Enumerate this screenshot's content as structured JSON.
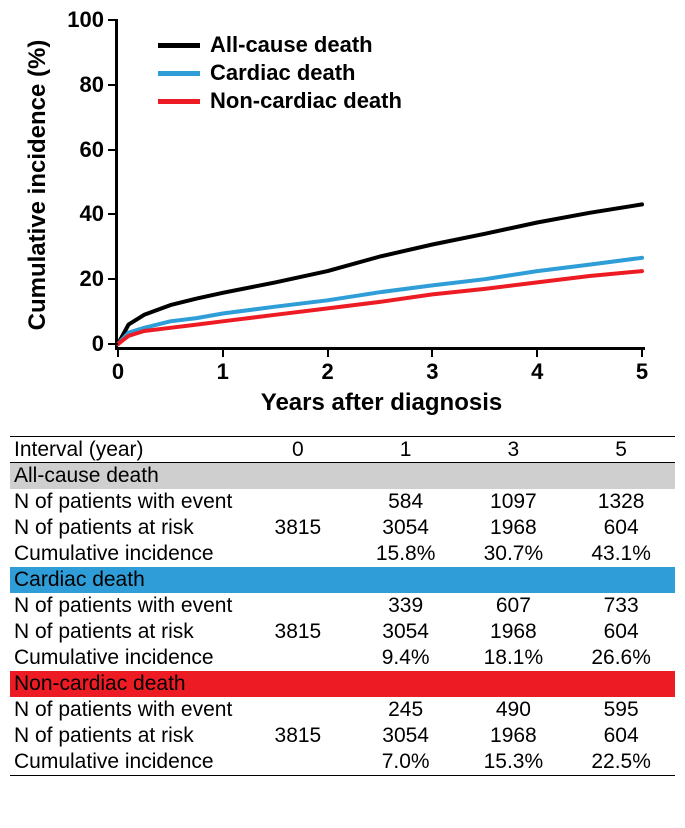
{
  "chart": {
    "type": "line",
    "background_color": "#ffffff",
    "axis_color": "#000000",
    "line_width": 4,
    "xlim": [
      0,
      5
    ],
    "ylim": [
      0,
      100
    ],
    "xticks": [
      0,
      1,
      2,
      3,
      4,
      5
    ],
    "yticks": [
      0,
      20,
      40,
      60,
      80,
      100
    ],
    "axis_tick_fontsize": 22,
    "axis_title_fontsize": 24,
    "axis_fontweight": "bold",
    "x_axis_title": "Years after diagnosis",
    "y_axis_title": "Cumulative incidence (%)",
    "legend": {
      "position": "upper-left",
      "fontsize": 22,
      "fontweight": "bold",
      "dash_width": 42,
      "dash_height": 5,
      "items": [
        {
          "label": "All-cause death",
          "color": "#000000"
        },
        {
          "label": "Cardiac death",
          "color": "#2e9dd8"
        },
        {
          "label": "Non-cardiac death",
          "color": "#ed1c24"
        }
      ]
    },
    "series": [
      {
        "name": "All-cause death",
        "color": "#000000",
        "x": [
          0,
          0.1,
          0.25,
          0.5,
          0.75,
          1,
          1.5,
          2,
          2.5,
          3,
          3.5,
          4,
          4.5,
          5
        ],
        "y": [
          0,
          6,
          9,
          12,
          14,
          15.8,
          19,
          22.5,
          27,
          30.7,
          34,
          37.5,
          40.5,
          43.1
        ]
      },
      {
        "name": "Cardiac death",
        "color": "#2e9dd8",
        "x": [
          0,
          0.1,
          0.25,
          0.5,
          0.75,
          1,
          1.5,
          2,
          2.5,
          3,
          3.5,
          4,
          4.5,
          5
        ],
        "y": [
          0,
          3.5,
          5,
          7,
          8,
          9.4,
          11.5,
          13.5,
          16,
          18.1,
          20,
          22.5,
          24.5,
          26.6
        ]
      },
      {
        "name": "Non-cardiac death",
        "color": "#ed1c24",
        "x": [
          0,
          0.1,
          0.25,
          0.5,
          0.75,
          1,
          1.5,
          2,
          2.5,
          3,
          3.5,
          4,
          4.5,
          5
        ],
        "y": [
          0,
          2.5,
          4,
          5,
          6,
          7.0,
          9,
          11,
          13,
          15.3,
          17,
          19,
          21,
          22.5
        ]
      }
    ]
  },
  "table": {
    "fontsize": 21,
    "border_color": "#000000",
    "header_label": "Interval (year)",
    "interval_cols": [
      "0",
      "1",
      "3",
      "5"
    ],
    "row_labels": {
      "n_event": "N of patients with event",
      "n_at_risk": "N of patients at risk",
      "cum_inc": "Cumulative incidence"
    },
    "groups": [
      {
        "title": "All-cause death",
        "band_bg": "#cfcfcf",
        "title_color": "#000000",
        "n_event": [
          "",
          "584",
          "1097",
          "1328"
        ],
        "n_at_risk": [
          "3815",
          "3054",
          "1968",
          "604"
        ],
        "cum_inc": [
          "",
          "15.8%",
          "30.7%",
          "43.1%"
        ]
      },
      {
        "title": "Cardiac death",
        "band_bg": "#2e9dd8",
        "title_color": "#000000",
        "n_event": [
          "",
          "339",
          "607",
          "733"
        ],
        "n_at_risk": [
          "3815",
          "3054",
          "1968",
          "604"
        ],
        "cum_inc": [
          "",
          "9.4%",
          "18.1%",
          "26.6%"
        ]
      },
      {
        "title": "Non-cardiac death",
        "band_bg": "#ed1c24",
        "title_color": "#000000",
        "n_event": [
          "",
          "245",
          "490",
          "595"
        ],
        "n_at_risk": [
          "3815",
          "3054",
          "1968",
          "604"
        ],
        "cum_inc": [
          "",
          "7.0%",
          "15.3%",
          "22.5%"
        ]
      }
    ]
  }
}
